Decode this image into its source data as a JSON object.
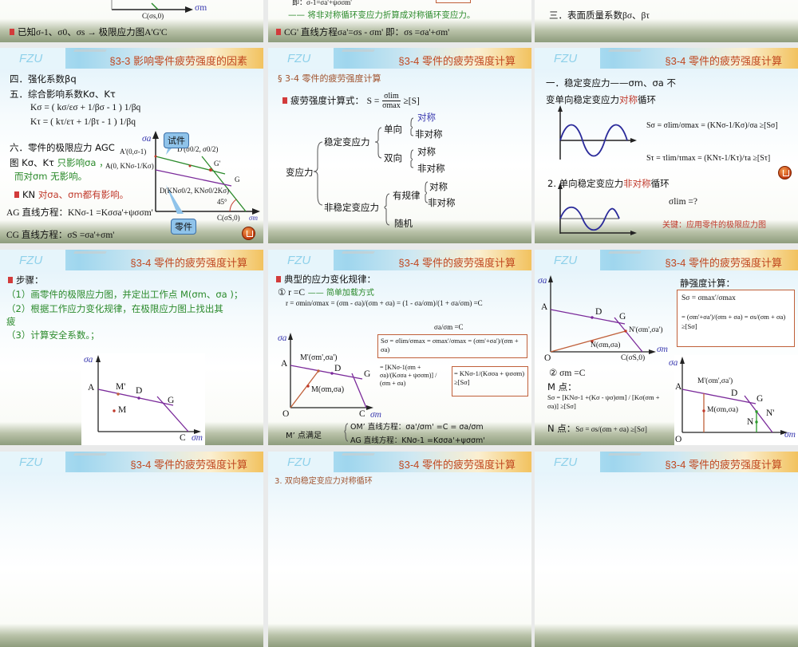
{
  "logo": "FZU",
  "row1": {
    "s1": {
      "axis_x": "σm",
      "point_c": "C(σs,0)",
      "caption": "已知σ-1、σ0、σs → 极限应力图A'G'C"
    },
    "s2": {
      "line1": "即：σ-1=σa'+ψσσm'",
      "line2": "—— 将非对称循环变应力折算成对称循环变应力。",
      "line3": "CG' 直线方程σa'=σs - σm'  即：σs =σa'+σm'"
    },
    "s3": {
      "line1": "三．表面质量系数βσ、βτ"
    }
  },
  "slideA": {
    "title": "§3-3 影响零件疲劳强度的因素",
    "l1": "四．强化系数βq",
    "l2": "五．综合影响系数Kσ、Kτ",
    "k_sigma": "Kσ = ( kσ/εσ + 1/βσ - 1 ) 1/βq",
    "k_tau": "Kτ = ( kτ/ετ + 1/βτ - 1 ) 1/βq",
    "l3": "六．零件的极限应力 AGC",
    "l4a": "图 Kσ、Kτ ",
    "l4b": "只影响σa ，",
    "l5": "而对σm 无影响。",
    "l6a": "KN ",
    "l6b": "对σa、σm都有影响。",
    "l7": "AG 直线方程：KNσ-1 =Kσσa'+ψσσm'",
    "l8": "CG 直线方程：σS =σa'+σm'",
    "diagram": {
      "y": "σa",
      "x": "σm",
      "a_prime": "A'(0,σ-1)",
      "d_prime": "D'(σ0/2, σ0/2)",
      "g_prime": "G'",
      "a": "A(0, KNσ-1/Kσ)",
      "g": "G",
      "d": "D(KNσ0/2, KNσ0/2Kσ)",
      "angle": "45°",
      "c": "C(σS,0)",
      "callout_specimen": "试件",
      "callout_part": "零件"
    }
  },
  "slideB": {
    "title": "§3-4 零件的疲劳强度计算",
    "subtitle": "§ 3-4 零件的疲劳强度计算",
    "formula_label": "疲劳强度计算式：",
    "formula_lhs": "S =",
    "formula_num": "σlim",
    "formula_den": "σmax",
    "formula_rhs": "≥[S]",
    "tree": {
      "root": "变应力",
      "steady": "稳定变应力",
      "unsteady": "非稳定变应力",
      "uni": "单向",
      "bi": "双向",
      "sym1": "对称",
      "asym1": "非对称",
      "sym2": "对称",
      "asym2": "非对称",
      "regular": "有规律",
      "sym3": "对称",
      "asym3": "非对称",
      "random": "随机"
    }
  },
  "slideC": {
    "title": "§3-4 零件的疲劳强度计算",
    "l1": "一．稳定变应力——σm、σa  不",
    "l2a": "变单向稳定变应力",
    "l2b": "对称",
    "l2c": "循环",
    "s_sigma": "Sσ = σlim/σmax = (KNσ-1/Kσ)/σa ≥[Sσ]",
    "s_tau": "Sτ = τlim/τmax = (KNτ-1/Kτ)/τa ≥[Sτ]",
    "l3a": "2. 单向稳定变应力",
    "l3b": "非对称",
    "l3c": "循环",
    "sigma_lim": "σlim =?",
    "key": "关键：应用零件的极限应力图"
  },
  "slideD": {
    "title": "§3-4 零件的疲劳强度计算",
    "heading": "步骤：",
    "s1": "（1）画零件的极限应力图，并定出工作点 M(σm、σa )；",
    "s2": "（2）根据工作应力变化规律，在极限应力图上找出其",
    "s2b": "疲",
    "s3": "（3）计算安全系数。；",
    "diagram": {
      "y": "σa",
      "x": "σm",
      "a": "A",
      "m_prime": "M'",
      "d": "D",
      "g": "G",
      "m": "M",
      "c": "C"
    }
  },
  "slideE": {
    "title": "§3-4 零件的疲劳强度计算",
    "heading": "典型的应力变化规律：",
    "case1": "① r =C",
    "case1_note": "—— 简单加载方式",
    "r_formula": "r = σmin/σmax = (σm - σa)/(σm + σa) = (1 - σa/σm)/(1 + σa/σm) =C",
    "r_result": "σa/σm =C",
    "s_box1": "Sσ = σlim/σmax = σmax'/σmax = (σm'+σa')/(σm + σa)",
    "s_mid": "= [KNσ-1(σm + σa)/(Kσσa + ψσσm)] / (σm + σa)",
    "s_box2": "= KNσ-1/(Kσσa + ψσσm) ≥[Sσ]",
    "m_satisfies": "M’ 点满足",
    "om_line": "OM’ 直线方程：σa'/σm' =C = σa/σm",
    "ag_line": "AG 直线方程：KNσ-1 =Kσσa'+ψσσm'",
    "diagram": {
      "y": "σa",
      "x": "σm",
      "a": "A",
      "m_prime": "M'(σm',σa')",
      "d": "D",
      "g": "G",
      "m": "M(σm,σa)",
      "o": "O",
      "c": "C"
    }
  },
  "slideF": {
    "title": "§3-4 零件的疲劳强度计算",
    "static_title": "静强度计算：",
    "static_1": "Sσ = σmax'/σmax",
    "static_2": "= (σm'+σa')/(σm + σa) = σs/(σm + σa) ≥[Sσ]",
    "case2": "② σm =C",
    "m_point": "M 点：",
    "m_formula": "Sσ = [KNσ-1 +(Kσ - ψσ)σm] / [Kσ(σm + σa)] ≥[Sσ]",
    "n_point": "N 点：",
    "n_formula": "Sσ = σs/(σm + σa) ≥[Sσ]",
    "diagram1": {
      "y": "σa",
      "x": "σm",
      "a": "A",
      "d": "D",
      "g": "G",
      "n_prime": "N'(σm',σa')",
      "n": "N(σm,σa)",
      "o": "O",
      "c": "C(σS,0)"
    },
    "diagram2": {
      "y": "σa",
      "x": "σm",
      "a": "A",
      "m_prime": "M'(σm',σa')",
      "d": "D",
      "g": "G",
      "m": "M(σm,σa)",
      "n_prime": "N'",
      "n": "N",
      "o": "O"
    }
  },
  "row4": {
    "t1": "§3-4 零件的疲劳强度计算",
    "t2": "§3-4 零件的疲劳强度计算",
    "t2_line": "3. 双向稳定变应力对称循环",
    "t3": "§3-4 零件的疲劳强度计算"
  },
  "colors": {
    "title": "#c0471f",
    "green": "#2b8a2b",
    "red": "#c0392b",
    "purple": "#7a2a9a",
    "line_orange": "#c0603a"
  }
}
